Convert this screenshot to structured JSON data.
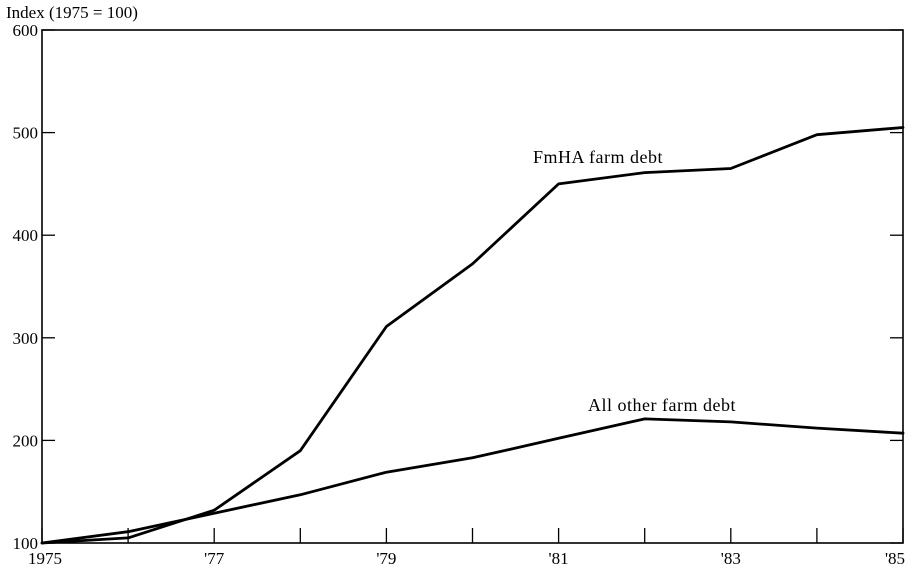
{
  "chart_data": {
    "type": "line",
    "ylabel": "Index (1975 = 100)",
    "xlim": [
      1975,
      1985
    ],
    "ylim": [
      100,
      600
    ],
    "y_ticks": [
      {
        "value": 100,
        "label": "100"
      },
      {
        "value": 200,
        "label": "200"
      },
      {
        "value": 300,
        "label": "300"
      },
      {
        "value": 400,
        "label": "400"
      },
      {
        "value": 500,
        "label": "500"
      },
      {
        "value": 600,
        "label": "600"
      }
    ],
    "x_ticks": [
      {
        "value": 1975,
        "label": "1975"
      },
      {
        "value": 1977,
        "label": "'77"
      },
      {
        "value": 1979,
        "label": "'79"
      },
      {
        "value": 1981,
        "label": "'81"
      },
      {
        "value": 1983,
        "label": "'83"
      },
      {
        "value": 1985,
        "label": "'85"
      }
    ],
    "x_minor_ticks": [
      1976,
      1978,
      1980,
      1982,
      1984
    ],
    "grid": false,
    "series": [
      {
        "name": "FmHA farm debt",
        "x": [
          1975,
          1976,
          1977,
          1978,
          1979,
          1980,
          1981,
          1982,
          1983,
          1984,
          1985
        ],
        "values": [
          100,
          105,
          132,
          190,
          311,
          372,
          450,
          461,
          465,
          498,
          505
        ]
      },
      {
        "name": "All other farm debt",
        "x": [
          1975,
          1976,
          1977,
          1978,
          1979,
          1980,
          1981,
          1982,
          1983,
          1984,
          1985
        ],
        "values": [
          100,
          111,
          129,
          147,
          169,
          183,
          202,
          221,
          218,
          212,
          207
        ]
      }
    ]
  }
}
